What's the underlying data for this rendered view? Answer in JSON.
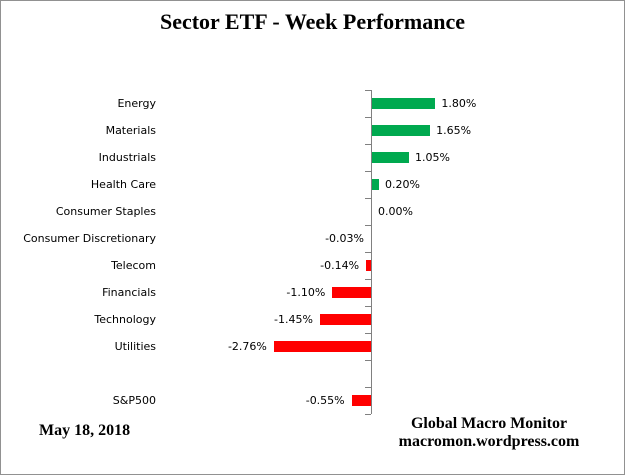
{
  "title": "Sector ETF - Week Performance",
  "footer": {
    "date": "May 18, 2018",
    "source_line1": "Global Macro Monitor",
    "source_line2": "macromon.wordpress.com"
  },
  "colors": {
    "positive_bar": "#00A94F",
    "negative_bar": "#FF0000",
    "axis": "#808080",
    "frame_border": "#919191"
  },
  "chart_data": {
    "type": "bar",
    "orientation": "horizontal",
    "title": "Sector ETF - Week Performance",
    "value_unit": "percent",
    "categories": [
      "Energy",
      "Materials",
      "Industrials",
      "Health Care",
      "Consumer Staples",
      "Consumer Discretionary",
      "Telecom",
      "Financials",
      "Technology",
      "Utilities",
      "",
      "S&P500"
    ],
    "values": [
      1.8,
      1.65,
      1.05,
      0.2,
      0.0,
      -0.03,
      -0.14,
      -1.1,
      -1.45,
      -2.76,
      null,
      -0.55
    ],
    "value_labels": [
      "1.80%",
      "1.65%",
      "1.05%",
      "0.20%",
      "0.00%",
      "-0.03%",
      "-0.14%",
      "-1.10%",
      "-1.45%",
      "-2.76%",
      "",
      "-0.55%"
    ],
    "xlim": [
      -3,
      2
    ],
    "positive_color": "#00A94F",
    "negative_color": "#FF0000",
    "legend": false,
    "gridlines": false,
    "data_labels": true
  }
}
